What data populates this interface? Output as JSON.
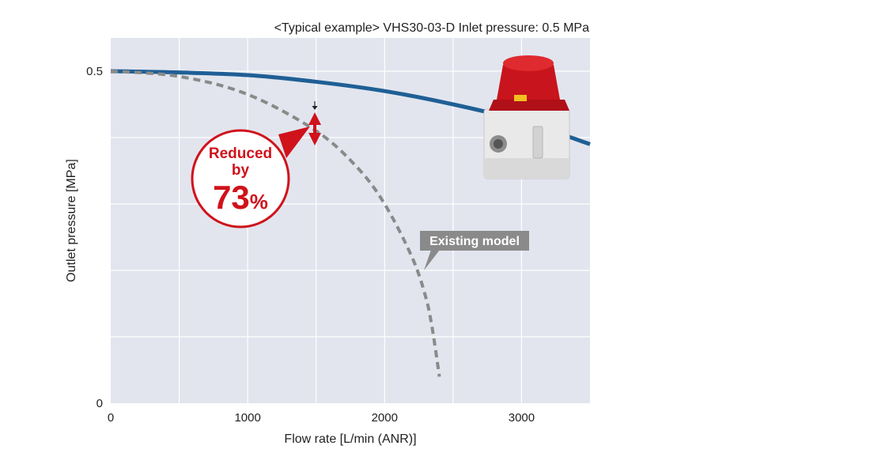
{
  "chart_data": {
    "type": "line",
    "title": "<Typical example> VHS30-03-D Inlet pressure: 0.5 MPa",
    "xlabel": "Flow rate [L/min (ANR)]",
    "ylabel": "Outlet pressure [MPa]",
    "xlim": [
      0,
      3500
    ],
    "ylim": [
      0,
      0.55
    ],
    "x_ticks": [
      0,
      1000,
      2000,
      3000
    ],
    "x_tick_labels": [
      "0",
      "1000",
      "2000",
      "3000"
    ],
    "y_ticks": [
      0,
      0.5
    ],
    "y_tick_labels": [
      "0",
      "0.5"
    ],
    "grid": true,
    "series": [
      {
        "name": "",
        "color": "#1f5f95",
        "style": "solid",
        "x": [
          0,
          500,
          1000,
          1500,
          2000,
          2500,
          3000,
          3500
        ],
        "y": [
          0.5,
          0.498,
          0.494,
          0.484,
          0.47,
          0.45,
          0.425,
          0.39
        ]
      },
      {
        "name": "Existing model",
        "color": "#8a8a8a",
        "style": "dashed",
        "x": [
          0,
          500,
          1000,
          1500,
          1800,
          2000,
          2200,
          2300,
          2350,
          2400
        ],
        "y": [
          0.5,
          0.492,
          0.465,
          0.41,
          0.355,
          0.3,
          0.22,
          0.16,
          0.11,
          0.04
        ]
      }
    ],
    "annotations": {
      "reduction_badge": {
        "line1": "Reduced",
        "line2": "by",
        "value": "73",
        "unit": "%"
      },
      "existing_label": "Existing model",
      "marker_x": 1500
    },
    "colors": {
      "plot_bg": "#e2e5ee",
      "grid": "#ffffff",
      "accent": "#d0121b"
    }
  },
  "product_image": {
    "icon": "pressure-regulator-icon",
    "cap_color": "#c8141c",
    "body_color": "#e9e9e9"
  }
}
